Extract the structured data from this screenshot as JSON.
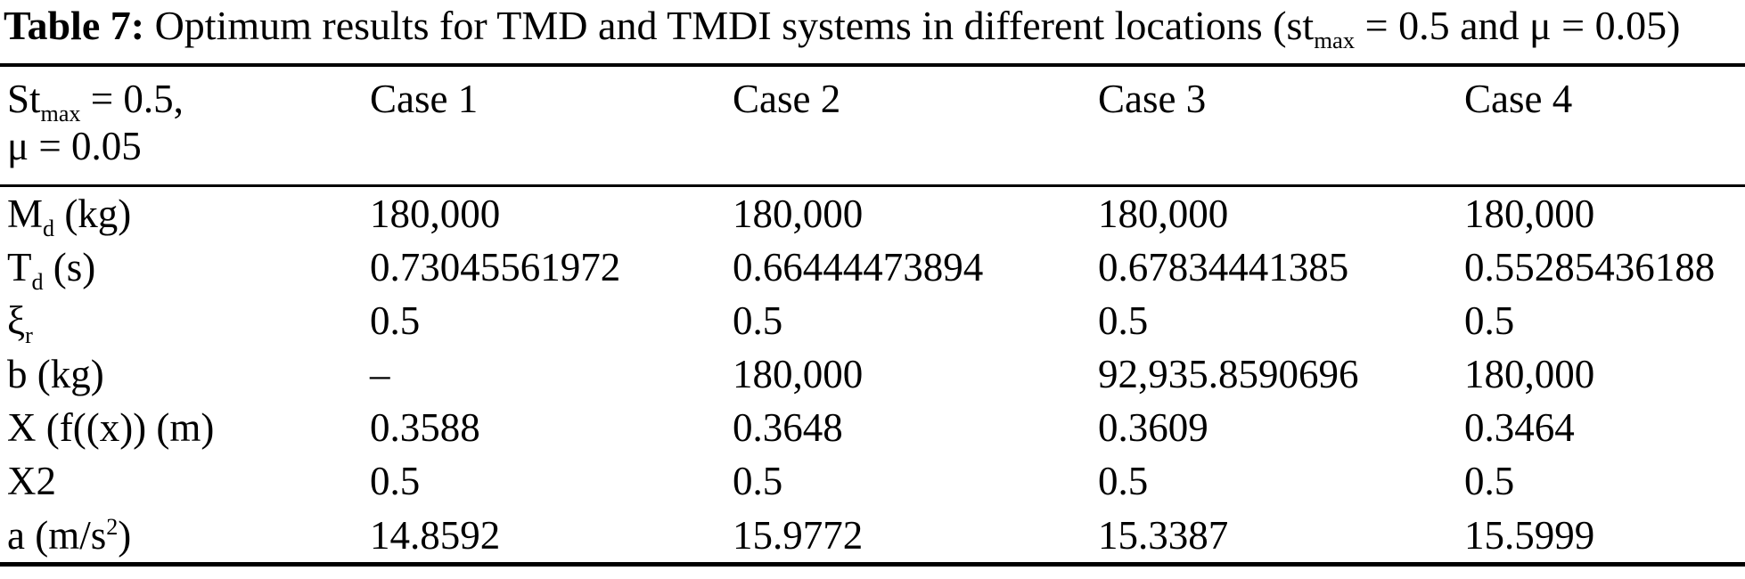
{
  "title": {
    "prefix": "Table 7:",
    "segments": [
      [
        "t",
        " Optimum results for TMD and TMDI systems in different locations (st"
      ],
      [
        "sub",
        "max"
      ],
      [
        "t",
        " = 0.5 and μ = 0.05)"
      ]
    ]
  },
  "table": {
    "corner_header": {
      "segments": [
        [
          "t",
          "St"
        ],
        [
          "sub",
          "max"
        ],
        [
          "t",
          " = 0.5,"
        ],
        [
          "br",
          ""
        ],
        [
          "t",
          "μ = 0.05"
        ]
      ]
    },
    "case_headers": [
      "Case 1",
      "Case 2",
      "Case 3",
      "Case 4"
    ],
    "rows": [
      {
        "label": [
          [
            "t",
            "M"
          ],
          [
            "sub",
            "d"
          ],
          [
            "t",
            " (kg)"
          ]
        ],
        "values": [
          "180,000",
          "180,000",
          "180,000",
          "180,000"
        ]
      },
      {
        "label": [
          [
            "t",
            "T"
          ],
          [
            "sub",
            "d"
          ],
          [
            "t",
            " (s)"
          ]
        ],
        "values": [
          "0.73045561972",
          "0.66444473894",
          "0.67834441385",
          "0.55285436188"
        ]
      },
      {
        "label": [
          [
            "t",
            "ξ"
          ],
          [
            "sub",
            "r"
          ]
        ],
        "values": [
          "0.5",
          "0.5",
          "0.5",
          "0.5"
        ]
      },
      {
        "label": [
          [
            "t",
            "b (kg)"
          ]
        ],
        "values": [
          "–",
          "180,000",
          "92,935.8590696",
          "180,000"
        ]
      },
      {
        "label": [
          [
            "t",
            "X (f((x)) (m)"
          ]
        ],
        "values": [
          "0.3588",
          "0.3648",
          "0.3609",
          "0.3464"
        ]
      },
      {
        "label": [
          [
            "t",
            "X2"
          ]
        ],
        "values": [
          "0.5",
          "0.5",
          "0.5",
          "0.5"
        ]
      },
      {
        "label": [
          [
            "t",
            "a (m/s"
          ],
          [
            "sup",
            "2"
          ],
          [
            "t",
            ")"
          ]
        ],
        "values": [
          "14.8592",
          "15.9772",
          "15.3387",
          "15.5999"
        ]
      }
    ]
  },
  "colors": {
    "text": "#000000",
    "background": "#ffffff",
    "rule": "#000000"
  }
}
